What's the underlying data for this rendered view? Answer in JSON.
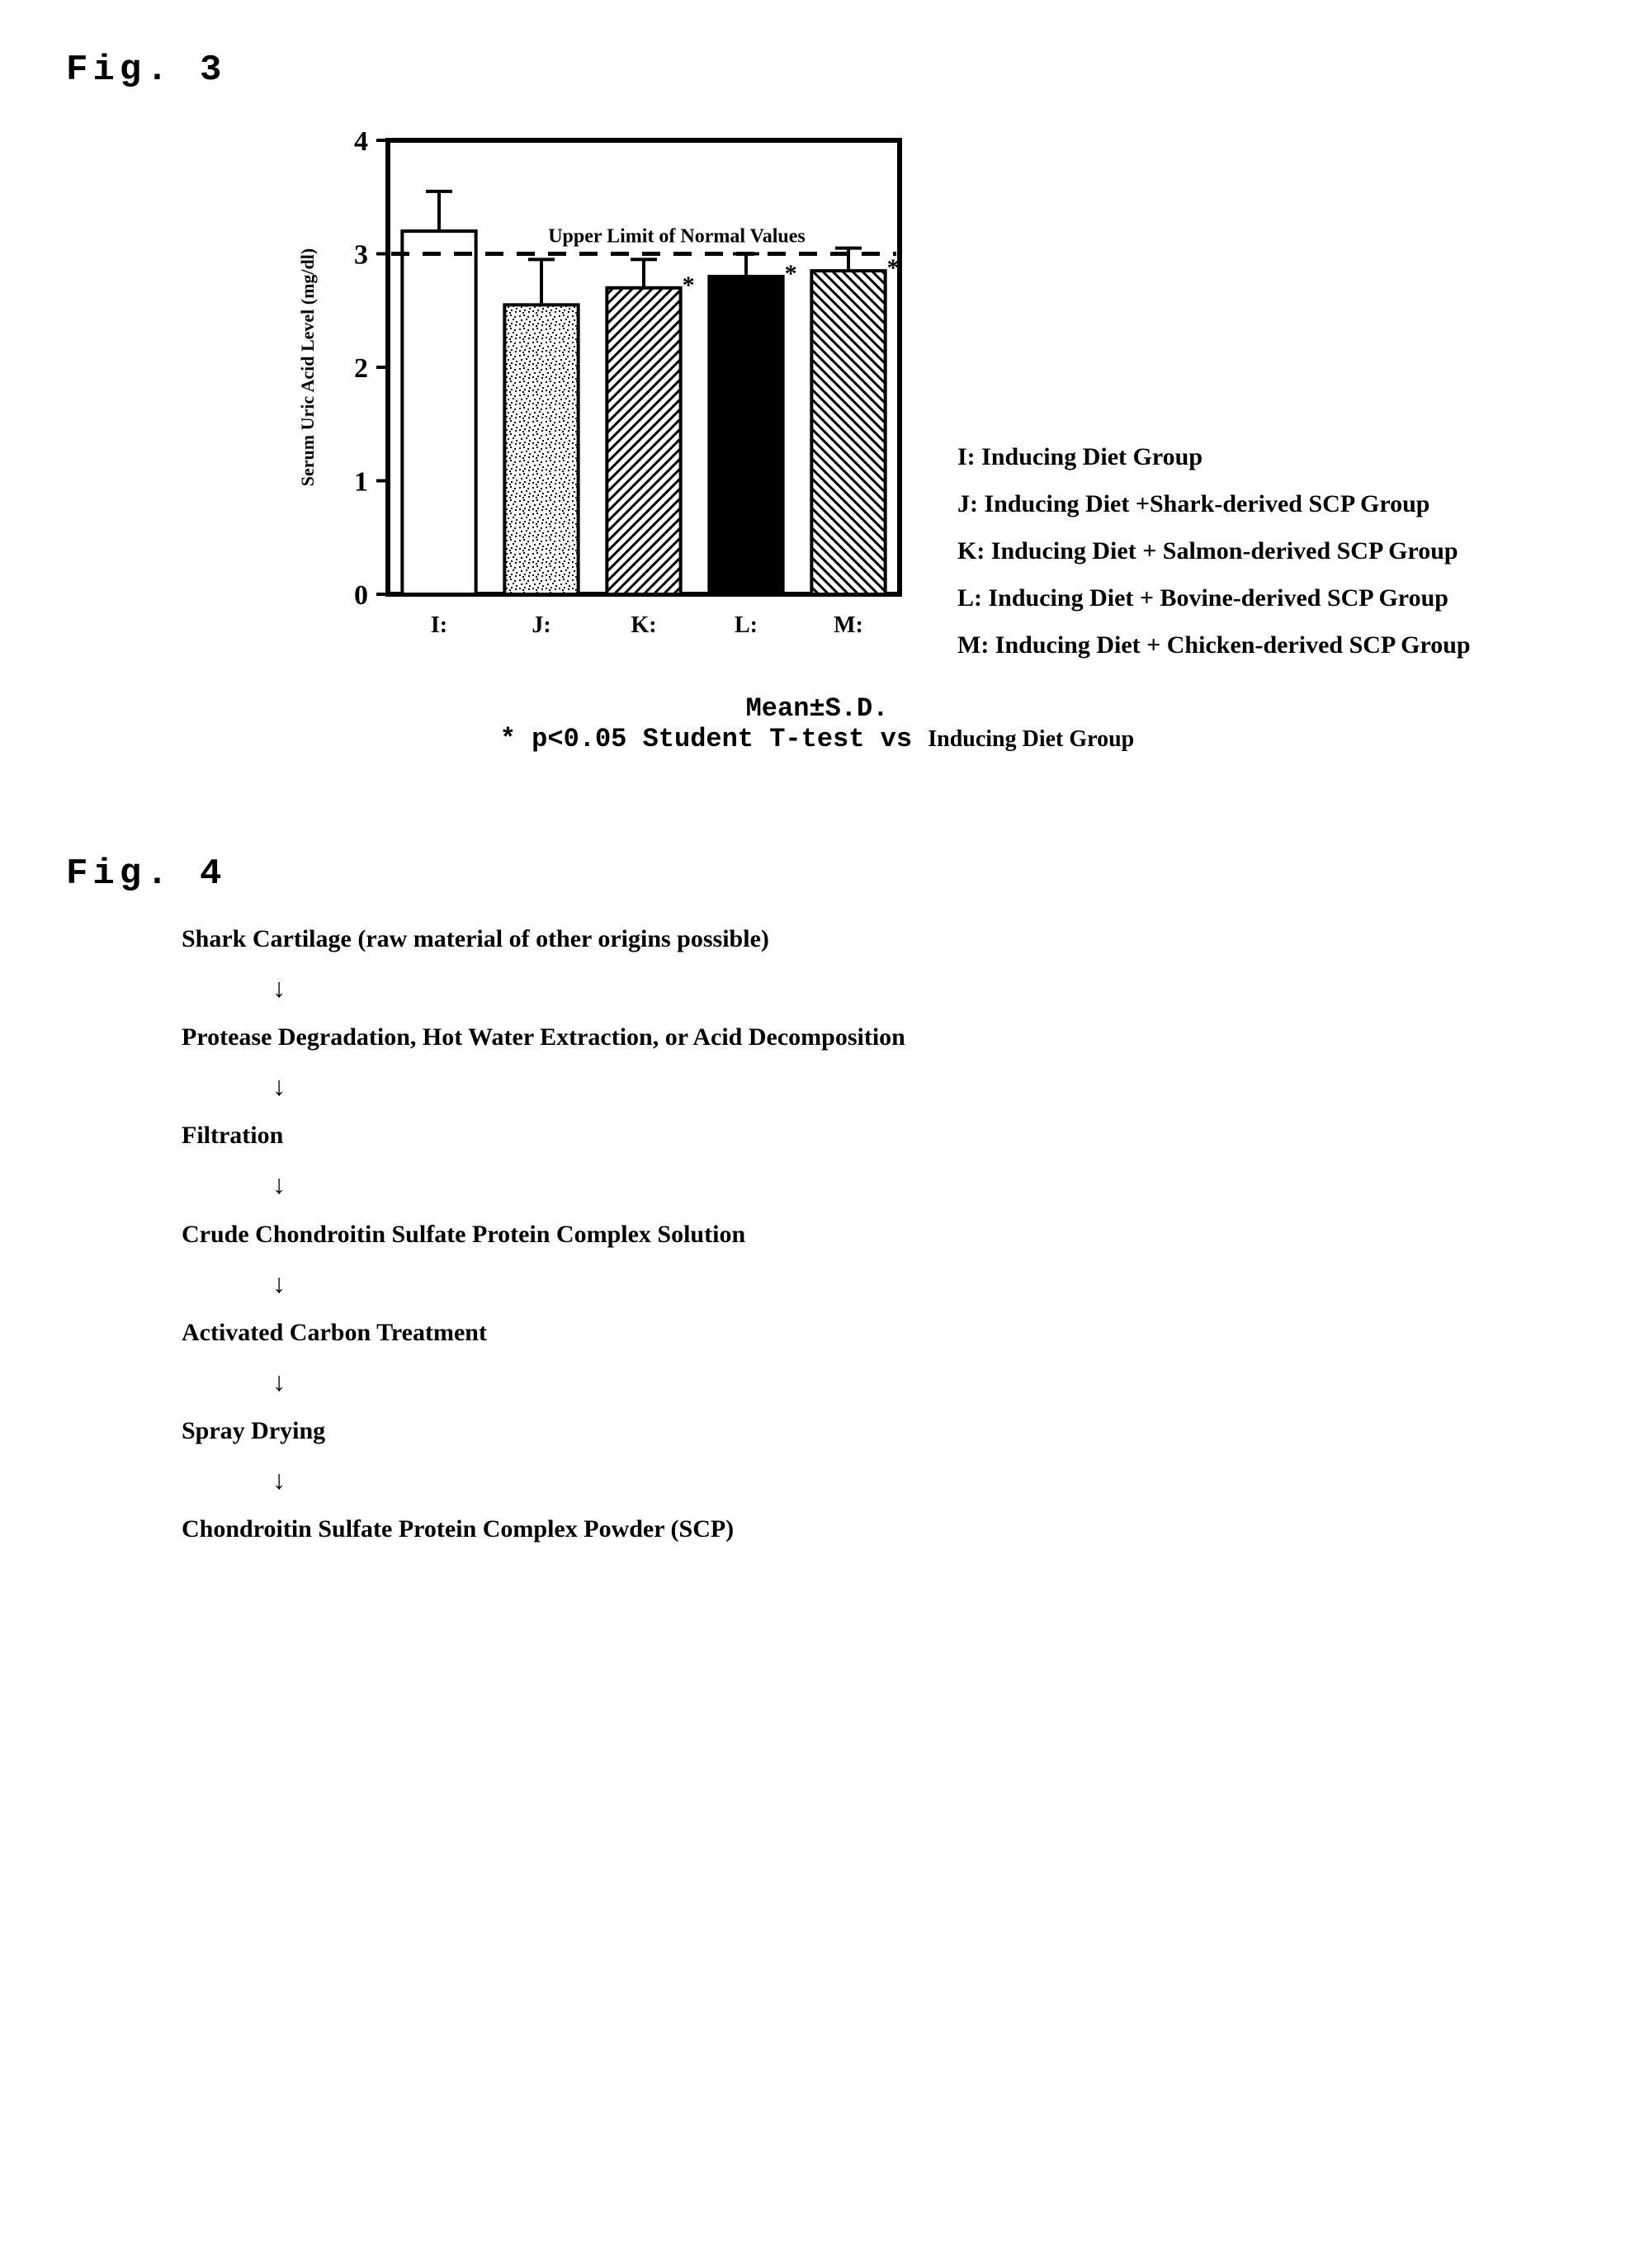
{
  "fig3": {
    "label": "Fig. 3",
    "chart": {
      "type": "bar",
      "y_axis_label": "Serum Uric Acid Level (mg/dl)",
      "y_axis_fontsize": 22,
      "ylim": [
        0,
        4
      ],
      "yticks": [
        0,
        1,
        2,
        3,
        4
      ],
      "ytick_fontsize": 34,
      "reference_line": {
        "value": 3.0,
        "label": "Upper Limit of Normal Values",
        "label_fontsize": 24,
        "style": "dashed"
      },
      "categories": [
        "I:",
        "J:",
        "K:",
        "L:",
        "M:"
      ],
      "category_fontsize": 28,
      "bars": [
        {
          "key": "I",
          "value": 3.2,
          "error": 0.35,
          "fill": "white",
          "significant": false
        },
        {
          "key": "J",
          "value": 2.55,
          "error": 0.4,
          "fill": "noise",
          "significant": false
        },
        {
          "key": "K",
          "value": 2.7,
          "error": 0.25,
          "fill": "diag-right",
          "significant": true
        },
        {
          "key": "L",
          "value": 2.8,
          "error": 0.2,
          "fill": "black",
          "significant": true
        },
        {
          "key": "M",
          "value": 2.85,
          "error": 0.2,
          "fill": "diag-left",
          "significant": true
        }
      ],
      "bar_width": 0.72,
      "border_color": "#000000",
      "background_color": "#ffffff",
      "stroke_width": 4,
      "plot_border_width": 6
    },
    "legend_items": [
      "I: Inducing Diet Group",
      "J: Inducing Diet +Shark-derived SCP Group",
      "K: Inducing Diet + Salmon-derived SCP Group",
      "L: Inducing Diet + Bovine-derived SCP Group",
      "M: Inducing Diet + Chicken-derived SCP Group"
    ],
    "stats": {
      "line1": "Mean±S.D.",
      "line2_prefix": "* p<0.05 Student T-test vs ",
      "line2_suffix": "Inducing Diet Group"
    }
  },
  "fig4": {
    "label": "Fig. 4",
    "steps": [
      "Shark Cartilage (raw material of other origins possible)",
      "Protease Degradation, Hot Water Extraction, or Acid Decomposition",
      "Filtration",
      "Crude Chondroitin Sulfate Protein Complex Solution",
      "Activated Carbon Treatment",
      "Spray Drying",
      "Chondroitin Sulfate Protein Complex Powder (SCP)"
    ],
    "arrow_glyph": "↓"
  }
}
